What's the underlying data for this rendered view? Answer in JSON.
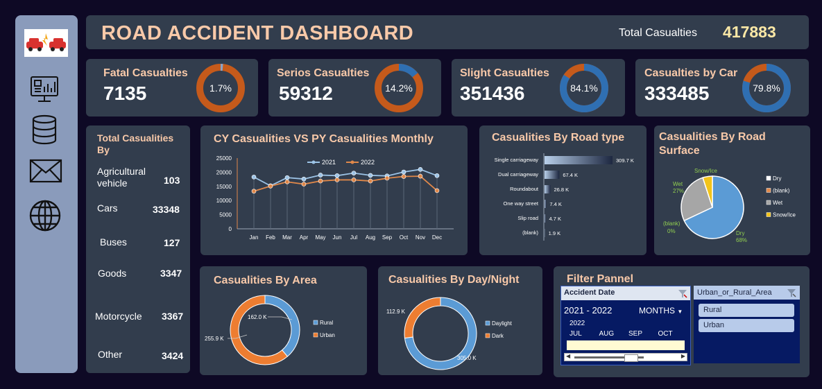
{
  "header": {
    "title": "ROAD ACCIDENT DASHBOARD",
    "total_label": "Total Casualties",
    "total_value": "417883"
  },
  "colors": {
    "blue": "#2f6fb2",
    "orange": "#c55a1b",
    "gray": "#a6a6a6",
    "yellow": "#f2c41a",
    "line_2021": "#9cc3e6",
    "line_2022": "#e0884a"
  },
  "sidebar": {
    "icons": [
      "crash-logo",
      "dashboard-icon",
      "database-icon",
      "mail-icon",
      "globe-icon"
    ]
  },
  "kpis": [
    {
      "label": "Fatal Casualties",
      "value": "7135",
      "pct_label": "1.7%",
      "pct": 1.7
    },
    {
      "label": "Serios Casualties",
      "value": "59312",
      "pct_label": "14.2%",
      "pct": 14.2
    },
    {
      "label": "Slight Casualties",
      "value": "351436",
      "pct_label": "84.1%",
      "pct": 84.1
    },
    {
      "label": "Casualties by Car",
      "value": "333485",
      "pct_label": "79.8%",
      "pct": 79.8
    }
  ],
  "total_by": {
    "title": "Total Casualities By",
    "items": [
      {
        "label": "Agricultural vehicle",
        "value": "103"
      },
      {
        "label": "Cars",
        "value": "33348"
      },
      {
        "label": "Buses",
        "value": "127"
      },
      {
        "label": "Goods",
        "value": "3347"
      },
      {
        "label": "Motorcycle",
        "value": "3367"
      },
      {
        "label": "Other",
        "value": "3424"
      }
    ]
  },
  "filter": {
    "title": "Filter Pannel",
    "date_header": "Accident Date",
    "date_range": "2021 - 2022",
    "granularity": "MONTHS",
    "year": "2022",
    "months": [
      "JUL",
      "AUG",
      "SEP",
      "OCT"
    ],
    "area_header": "Urban_or_Rural_Area",
    "area_options": [
      "Rural",
      "Urban"
    ]
  },
  "chart_data": [
    {
      "type": "line",
      "title": "CY Casualities  VS PY Casualities  Monthly",
      "categories": [
        "Jan",
        "Feb",
        "Mar",
        "Apr",
        "May",
        "Jun",
        "Jul",
        "Aug",
        "Sep",
        "Oct",
        "Nov",
        "Dec"
      ],
      "series": [
        {
          "name": "2021",
          "values": [
            18300,
            15200,
            18100,
            17600,
            19000,
            18800,
            19700,
            18900,
            18700,
            20100,
            21000,
            18800
          ]
        },
        {
          "name": "2022",
          "values": [
            13300,
            15100,
            16600,
            15800,
            16900,
            17300,
            17300,
            16900,
            17900,
            18500,
            18600,
            13500
          ]
        }
      ],
      "ylim": [
        0,
        25000
      ],
      "yticks": [
        "0",
        "5000",
        "10000",
        "15000",
        "20000",
        "25000"
      ]
    },
    {
      "type": "bar",
      "title": "Casualities  By Road type",
      "categories": [
        "Single carriageway",
        "Dual carriageway",
        "Roundabout",
        "One way street",
        "Slip road",
        "(blank)"
      ],
      "values": [
        309.7,
        67.4,
        26.8,
        7.4,
        4.7,
        1.9
      ],
      "value_labels": [
        "309.7 K",
        "67.4 K",
        "26.8 K",
        "7.4 K",
        "4.7 K",
        "1.9 K"
      ]
    },
    {
      "type": "pie",
      "title": "Casualities  By Road Surface",
      "categories": [
        "Dry",
        "(blank)",
        "Wet",
        "Snow/Ice"
      ],
      "values": [
        68,
        0,
        27,
        5
      ],
      "slice_labels": [
        {
          "name": "Dry",
          "pct": "68%"
        },
        {
          "name": "(blank)",
          "pct": "0%"
        },
        {
          "name": "Wet",
          "pct": "27%"
        },
        {
          "name": "Snow/Ice",
          "pct": ""
        }
      ],
      "legend": "right"
    },
    {
      "type": "pie",
      "title": "Casualities  By Area",
      "categories": [
        "Rural",
        "Urban"
      ],
      "values": [
        162.0,
        255.9
      ],
      "value_labels": [
        "162.0 K",
        "255.9 K"
      ],
      "legend": "right"
    },
    {
      "type": "pie",
      "title": "Casualities  By Day/Night",
      "categories": [
        "Daylight",
        "Dark"
      ],
      "values": [
        305.0,
        112.9
      ],
      "value_labels": [
        "305.0 K",
        "112.9 K"
      ],
      "legend": "right"
    }
  ]
}
